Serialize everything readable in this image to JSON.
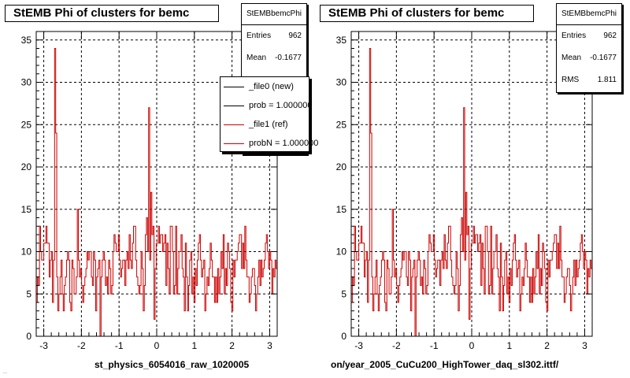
{
  "panels": [
    {
      "title": "StEMB Phi of clusters for bemc",
      "stats": {
        "name": "StEMBbemcPhi",
        "entries_label": "Entries",
        "entries": "962",
        "mean_label": "Mean",
        "mean": "-0.1677"
      },
      "xlabel": "st_physics_6054016_raw_1020005",
      "legend": [
        {
          "text": "_file0 (new)",
          "color": "#000000"
        },
        {
          "text": "prob = 1.000000",
          "color": "#000000"
        },
        {
          "text": "_file1 (ref)",
          "color": "#cc0000"
        },
        {
          "text": "probN = 1.000000",
          "color": "#cc0000"
        }
      ]
    },
    {
      "title": "StEMB Phi of clusters for bemc",
      "stats": {
        "name": "StEMBbemcPhi",
        "entries_label": "Entries",
        "entries": "962",
        "mean_label": "Mean",
        "mean": "-0.1677",
        "rms_label": "RMS",
        "rms": "1.811"
      },
      "xlabel": "on/year_2005_CuCu200_HighTower_daq_sl302.ittf/"
    }
  ],
  "footer_note": "...",
  "chart_data": {
    "type": "histogram",
    "title": "StEMB Phi of clusters for bemc",
    "xlim": [
      -3.2,
      3.2
    ],
    "ylim": [
      0,
      36
    ],
    "xticks": [
      -3,
      -2,
      -1,
      0,
      1,
      2,
      3
    ],
    "yticks": [
      0,
      5,
      10,
      15,
      20,
      25,
      30,
      35
    ],
    "grid": true,
    "line_color": "#cc0000",
    "bins": {
      "xmin": -3.2,
      "xmax": 3.2,
      "values": [
        4,
        7,
        6,
        13,
        10,
        9,
        9,
        11,
        11,
        13,
        11,
        11,
        7,
        9,
        10,
        4,
        9,
        34,
        24,
        7,
        3,
        5,
        7,
        9,
        5,
        3,
        6,
        7,
        9,
        10,
        9,
        4,
        3,
        9,
        8,
        5,
        5,
        7,
        15,
        9,
        7,
        8,
        6,
        4,
        6,
        7,
        8,
        10,
        9,
        10,
        10,
        7,
        6,
        10,
        9,
        3,
        7,
        8,
        9,
        0,
        7,
        9,
        10,
        9,
        6,
        7,
        5,
        9,
        8,
        5,
        6,
        10,
        12,
        11,
        10,
        10,
        12,
        9,
        7,
        8,
        9,
        9,
        6,
        9,
        10,
        8,
        12,
        9,
        8,
        11,
        13,
        13,
        9,
        7,
        6,
        5,
        6,
        10,
        8,
        3,
        6,
        12,
        14,
        10,
        27,
        9,
        17,
        12,
        13,
        2,
        8,
        11,
        11,
        13,
        11,
        12,
        12,
        10,
        11,
        12,
        6,
        11,
        8,
        5,
        13,
        13,
        10,
        5,
        6,
        13,
        5,
        8,
        10,
        10,
        12,
        8,
        7,
        3,
        11,
        7,
        3,
        6,
        9,
        10,
        5,
        7,
        4,
        8,
        6,
        9,
        11,
        12,
        9,
        7,
        8,
        9,
        3,
        5,
        7,
        6,
        8,
        11,
        9,
        7,
        7,
        4,
        7,
        4,
        8,
        5,
        7,
        10,
        8,
        12,
        5,
        8,
        6,
        11,
        10,
        8,
        4,
        3,
        9,
        7,
        9,
        9,
        10,
        11,
        12,
        12,
        8,
        11,
        8,
        13,
        9,
        7,
        7,
        4,
        5,
        7,
        8,
        8,
        6,
        3,
        5,
        7,
        9,
        6,
        9,
        7,
        8,
        9,
        11,
        12,
        10,
        8,
        10,
        9,
        5,
        8,
        7,
        9,
        8
      ]
    }
  }
}
